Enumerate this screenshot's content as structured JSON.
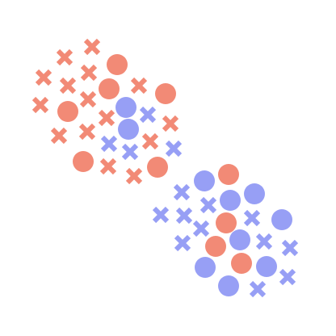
{
  "colors": {
    "background": "#ffffff",
    "red": "#f28a76",
    "blue": "#979ff5"
  },
  "icons": {
    "circle": "circle-piece-icon",
    "cross": "cross-piece-icon"
  }
}
